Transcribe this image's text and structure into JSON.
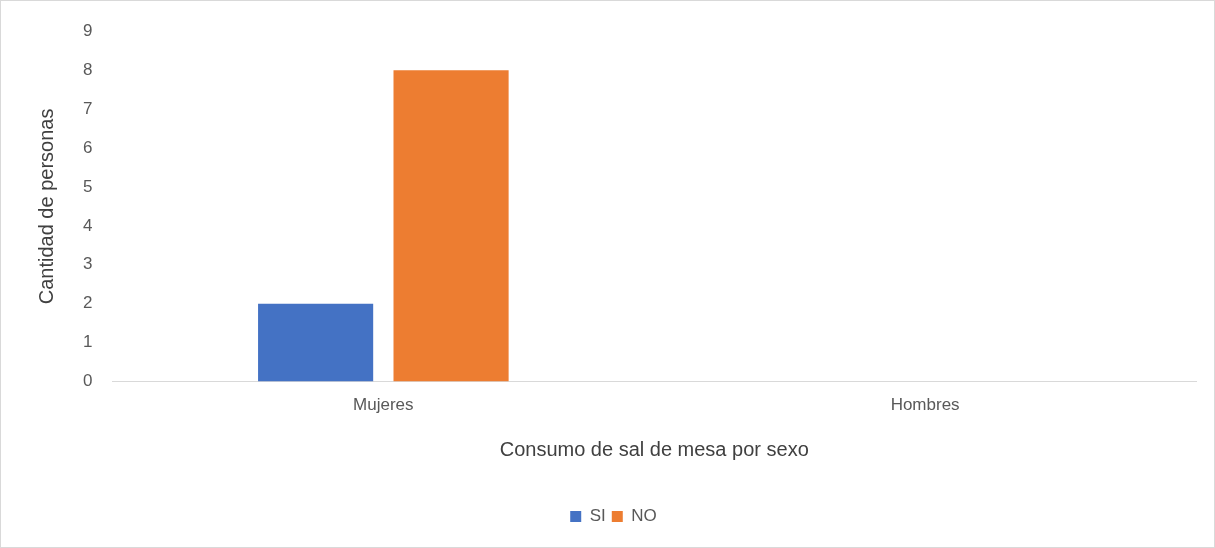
{
  "chart_data": {
    "type": "bar",
    "xlabel": "Consumo de sal de mesa por sexo",
    "ylabel": "Cantidad de personas",
    "categories": [
      "Mujeres",
      "Hombres"
    ],
    "series": [
      {
        "name": "SI",
        "color": "#4472c4",
        "values": [
          2,
          0
        ]
      },
      {
        "name": "NO",
        "color": "#ed7d31",
        "values": [
          8,
          0
        ]
      }
    ],
    "ylim": [
      0,
      9
    ],
    "yticks": [
      0,
      1,
      2,
      3,
      4,
      5,
      6,
      7,
      8,
      9
    ],
    "grid": false,
    "legend": "bottom"
  }
}
